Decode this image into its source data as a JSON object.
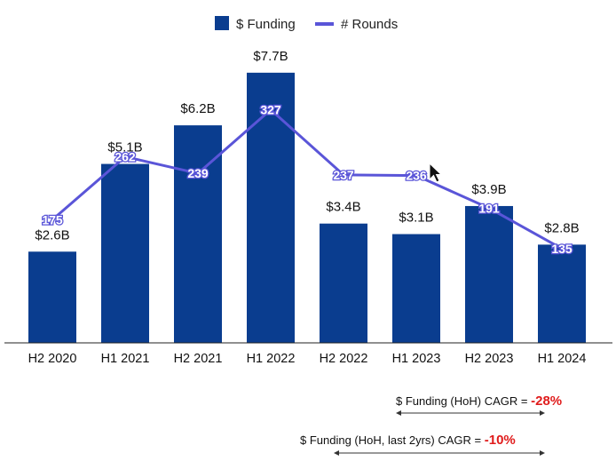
{
  "chart_data": {
    "type": "bar",
    "categories": [
      "H2 2020",
      "H1 2021",
      "H2 2021",
      "H1 2022",
      "H2 2022",
      "H1 2023",
      "H2 2023",
      "H1 2024"
    ],
    "series": [
      {
        "name": "$ Funding",
        "type": "bar",
        "values": [
          2.6,
          5.1,
          6.2,
          7.7,
          3.4,
          3.1,
          3.9,
          2.8
        ],
        "labels": [
          "$2.6B",
          "$5.1B",
          "$6.2B",
          "$7.7B",
          "$3.4B",
          "$3.1B",
          "$3.9B",
          "$2.8B"
        ],
        "color": "#0a3d8f"
      },
      {
        "name": "# Rounds",
        "type": "line",
        "values": [
          175,
          262,
          239,
          327,
          237,
          236,
          191,
          135
        ],
        "labels": [
          "175",
          "262",
          "239",
          "327",
          "237",
          "236",
          "191",
          "135"
        ],
        "color": "#5a55d8"
      }
    ],
    "legend": {
      "position": "top-center",
      "entries": [
        "$ Funding",
        "# Rounds"
      ]
    }
  },
  "annotations": {
    "cagr_hoh_label": "$ Funding (HoH) CAGR =",
    "cagr_hoh_value": "-28%",
    "cagr_2yr_label": "$ Funding (HoH, last 2yrs) CAGR =",
    "cagr_2yr_value": "-10%"
  }
}
